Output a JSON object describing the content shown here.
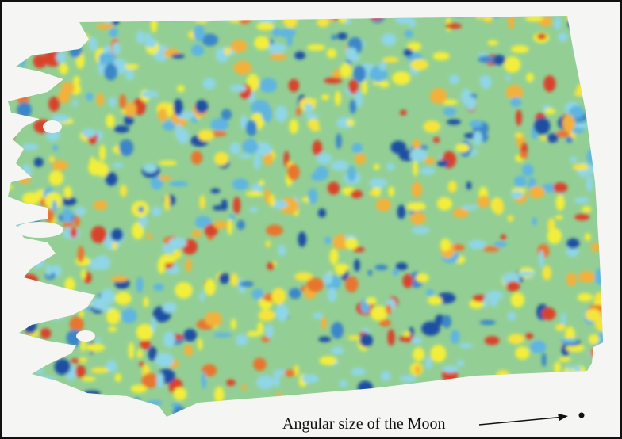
{
  "annotation": "Angular size of the Moon"
}
